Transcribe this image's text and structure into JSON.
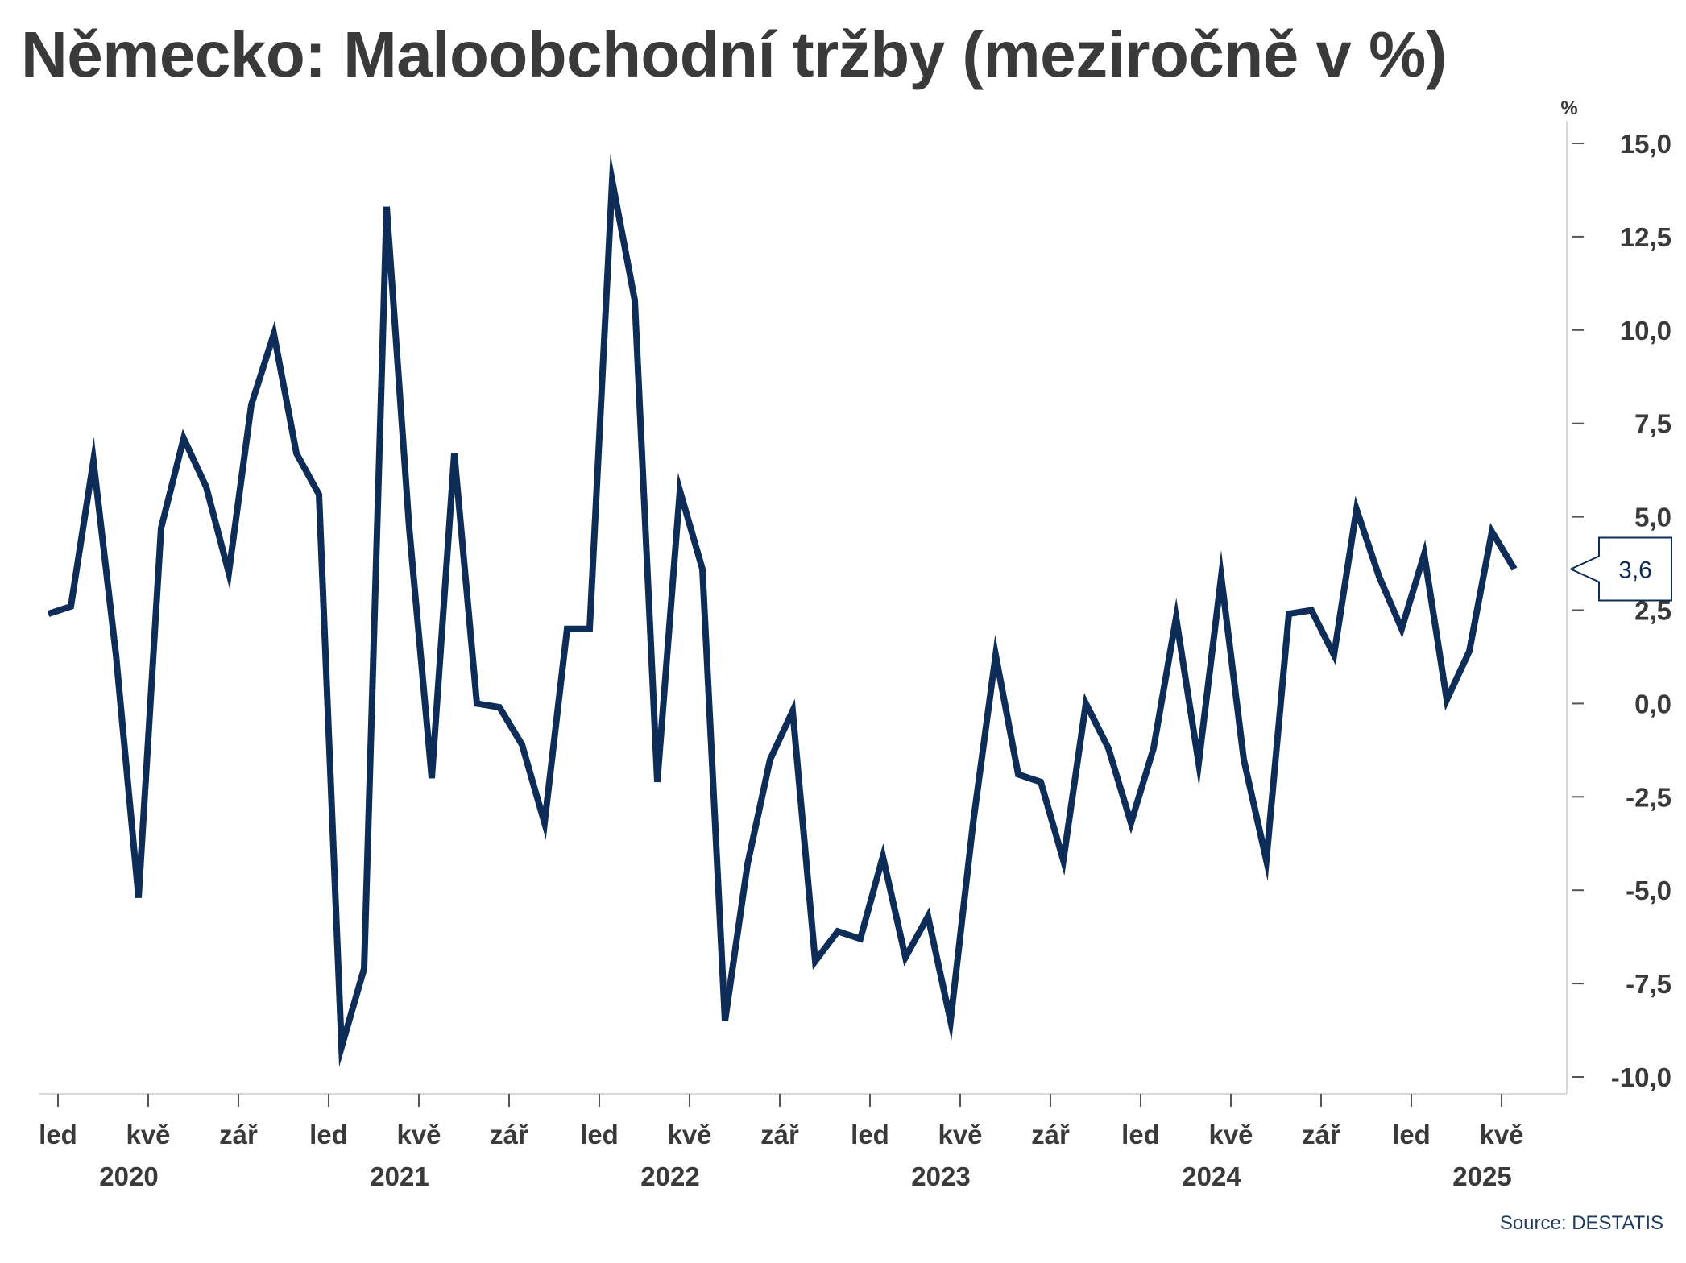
{
  "title": "Německo: Maloobchodní tržby (meziročně v %)",
  "source": "Source: DESTATIS",
  "colors": {
    "line": "#0d2c57",
    "text": "#3a3a3a",
    "axis": "#d9d9d9",
    "callout_border": "#0d2c57"
  },
  "chart_data": {
    "type": "line",
    "title": "Německo: Maloobchodní tržby (meziročně v %)",
    "y_unit": "%",
    "ylim": [
      -10.0,
      15.0
    ],
    "y_ticks": [
      "15,0",
      "12,5",
      "10,0",
      "7,5",
      "5,0",
      "2,5",
      "0,0",
      "-2,5",
      "-5,0",
      "-7,5",
      "-10,0"
    ],
    "y_tick_values": [
      15,
      12.5,
      10,
      7.5,
      5,
      2.5,
      0,
      -2.5,
      -5,
      -7.5,
      -10
    ],
    "y_axis_side": "right",
    "grid": false,
    "x_start": "2020-01",
    "x_month_ticks": [
      {
        "index": 0,
        "label": "led"
      },
      {
        "index": 4,
        "label": "kvě"
      },
      {
        "index": 8,
        "label": "zář"
      },
      {
        "index": 12,
        "label": "led"
      },
      {
        "index": 16,
        "label": "kvě"
      },
      {
        "index": 20,
        "label": "zář"
      },
      {
        "index": 24,
        "label": "led"
      },
      {
        "index": 28,
        "label": "kvě"
      },
      {
        "index": 32,
        "label": "zář"
      },
      {
        "index": 36,
        "label": "led"
      },
      {
        "index": 40,
        "label": "kvě"
      },
      {
        "index": 44,
        "label": "zář"
      },
      {
        "index": 48,
        "label": "led"
      },
      {
        "index": 52,
        "label": "kvě"
      },
      {
        "index": 56,
        "label": "zář"
      },
      {
        "index": 60,
        "label": "led"
      },
      {
        "index": 64,
        "label": "kvě"
      }
    ],
    "x_year_labels": [
      {
        "index": 3,
        "label": "2020"
      },
      {
        "index": 15,
        "label": "2021"
      },
      {
        "index": 27,
        "label": "2022"
      },
      {
        "index": 39,
        "label": "2023"
      },
      {
        "index": 51,
        "label": "2024"
      },
      {
        "index": 63,
        "label": "2025"
      }
    ],
    "series": [
      {
        "values": [
          2.4,
          2.6,
          6.5,
          1.3,
          -5.2,
          4.7,
          7.1,
          5.8,
          3.5,
          8.0,
          9.9,
          6.7,
          5.6,
          -9.2,
          -7.1,
          13.3,
          4.7,
          -2.0,
          6.7,
          0.0,
          -0.1,
          -1.1,
          -3.2,
          2.0,
          2.0,
          14.0,
          10.8,
          -2.1,
          5.7,
          3.6,
          -8.5,
          -4.3,
          -1.5,
          -0.2,
          -6.9,
          -6.1,
          -6.3,
          -4.1,
          -6.8,
          -5.7,
          -8.5,
          -3.2,
          1.3,
          -1.9,
          -2.1,
          -4.2,
          0.0,
          -1.2,
          -3.2,
          -1.2,
          2.3,
          -1.6,
          3.4,
          -1.5,
          -4.2,
          2.4,
          2.5,
          1.3,
          5.2,
          3.4,
          2.0,
          4.0,
          0.1,
          1.4,
          4.6,
          3.6
        ]
      }
    ],
    "last_value_label": "3,6"
  }
}
